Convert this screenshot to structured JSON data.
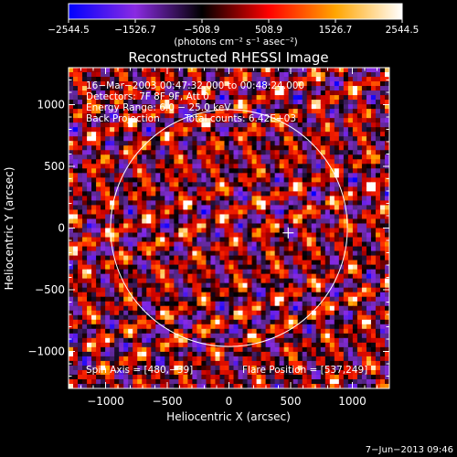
{
  "chart_data": {
    "type": "heatmap",
    "title": "Reconstructed RHESSI Image",
    "xlabel": "Heliocentric X (arcsec)",
    "ylabel": "Heliocentric Y (arcsec)",
    "xlim": [
      -1300,
      1300
    ],
    "ylim": [
      -1300,
      1300
    ],
    "x_ticks": [
      -1000,
      -500,
      0,
      500,
      1000
    ],
    "y_ticks": [
      -1000,
      -500,
      0,
      500,
      1000
    ],
    "x_tick_labels": [
      "−1000",
      "−500",
      "0",
      "500",
      "1000"
    ],
    "y_tick_labels": [
      "−1000",
      "−500",
      "0",
      "500",
      "1000"
    ],
    "colorbar": {
      "range": [
        -2544.5,
        2544.5
      ],
      "ticks": [
        -2544.5,
        -1526.7,
        -508.9,
        508.9,
        1526.7,
        2544.5
      ],
      "tick_labels": [
        "−2544.5",
        "−1526.7",
        "−508.9",
        "508.9",
        "1526.7",
        "2544.5"
      ],
      "unit_label": "(photons cm⁻² s⁻¹ asec⁻²)",
      "colors": [
        "#0000ff",
        "#8a2be2",
        "#000000",
        "#ff0000",
        "#ffa500",
        "#ffffff"
      ]
    },
    "annotations": [
      "16−Mar−2003 00:47:32.000 to 00:48:24.000",
      "Detectors: 7F 8F 9F, Att 0",
      "Energy Range: 6.0 − 25.0 keV",
      "Back Projection",
      "Total counts: 6.42E+03"
    ],
    "spin_axis_label": "Spin Axis = [480,−39]",
    "flare_position_label": "Flare Position = [537,249]",
    "spin_axis": [
      480,
      -39
    ],
    "solar_limb_radius": 960,
    "footer_date": "7−Jun−2013 09:46"
  }
}
